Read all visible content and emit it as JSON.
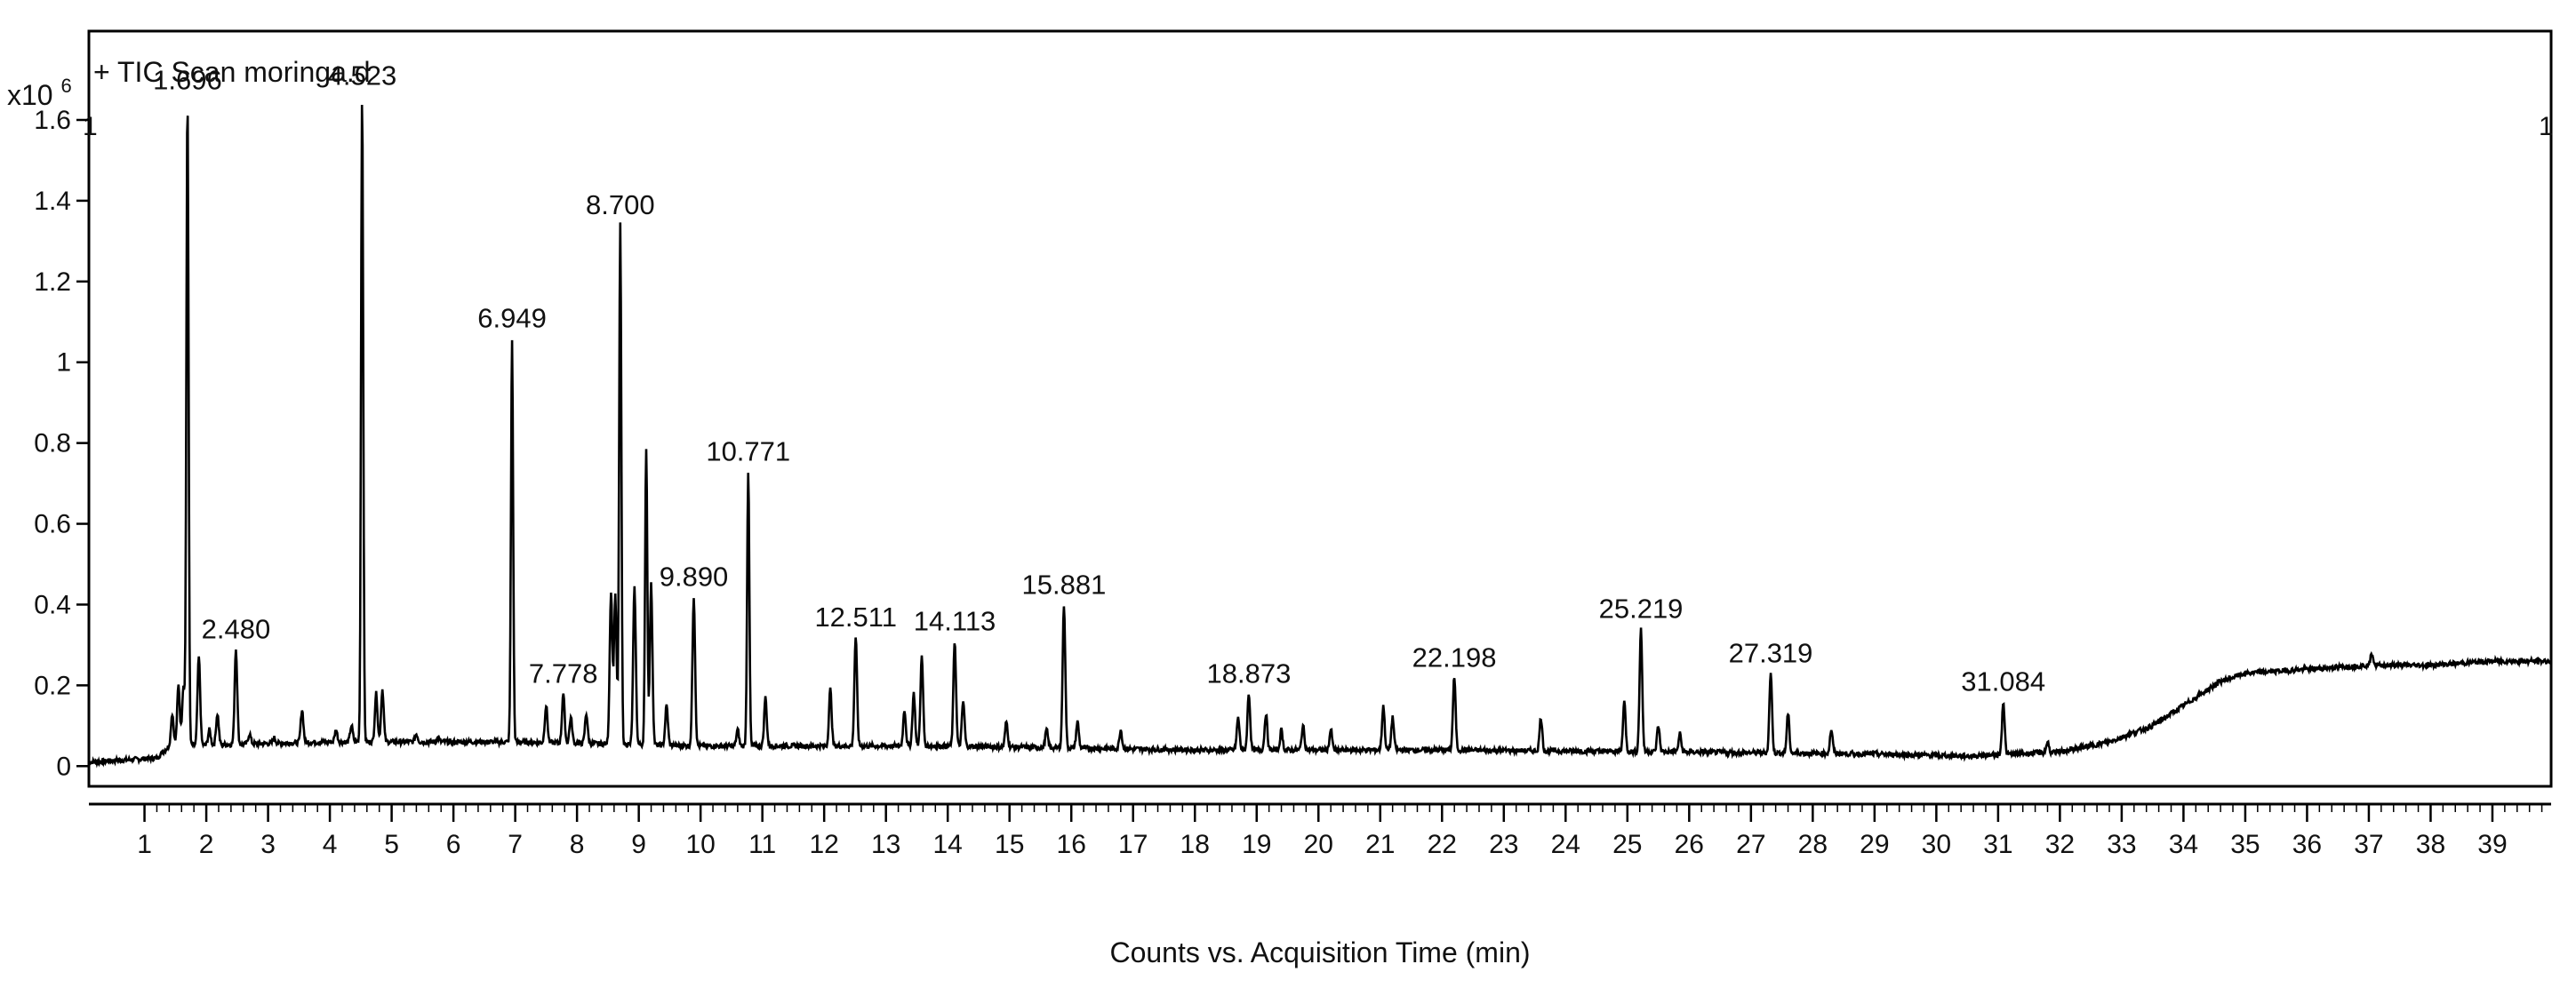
{
  "chart_data": {
    "type": "line",
    "title": "+ TIC Scan moringa.d",
    "xlabel": "Counts vs. Acquisition Time (min)",
    "ylabel": "",
    "y_multiplier": "x10",
    "y_exponent": "6",
    "corner_marker_left": "1",
    "corner_marker_right": "1",
    "xlim": [
      0.1,
      39.95
    ],
    "ylim": [
      -0.05,
      1.82
    ],
    "x_ticks": [
      1,
      2,
      3,
      4,
      5,
      6,
      7,
      8,
      9,
      10,
      11,
      12,
      13,
      14,
      15,
      16,
      17,
      18,
      19,
      20,
      21,
      22,
      23,
      24,
      25,
      26,
      27,
      28,
      29,
      30,
      31,
      32,
      33,
      34,
      35,
      36,
      37,
      38,
      39
    ],
    "x_tick_labels": [
      "1",
      "2",
      "3",
      "4",
      "5",
      "6",
      "7",
      "8",
      "9",
      "10",
      "11",
      "12",
      "13",
      "14",
      "15",
      "16",
      "17",
      "18",
      "19",
      "20",
      "21",
      "22",
      "23",
      "24",
      "25",
      "26",
      "27",
      "28",
      "29",
      "30",
      "31",
      "32",
      "33",
      "34",
      "35",
      "36",
      "37",
      "38",
      "39"
    ],
    "y_ticks": [
      0,
      0.2,
      0.4,
      0.6,
      0.8,
      1,
      1.2,
      1.4,
      1.6
    ],
    "y_tick_labels": [
      "0",
      "0.2",
      "0.4",
      "0.6",
      "0.8",
      "1",
      "1.2",
      "1.4",
      "1.6"
    ],
    "grid": false,
    "line_color": "#000000",
    "peaks": [
      {
        "x": 1.696,
        "y": 1.65,
        "label": "1.696"
      },
      {
        "x": 2.48,
        "y": 0.29,
        "label": "2.480"
      },
      {
        "x": 4.523,
        "y": 1.66,
        "label": "4.523"
      },
      {
        "x": 6.949,
        "y": 1.06,
        "label": "6.949"
      },
      {
        "x": 7.778,
        "y": 0.18,
        "label": "7.778"
      },
      {
        "x": 8.7,
        "y": 1.34,
        "label": "8.700"
      },
      {
        "x": 9.89,
        "y": 0.42,
        "label": "9.890"
      },
      {
        "x": 10.771,
        "y": 0.73,
        "label": "10.771"
      },
      {
        "x": 12.511,
        "y": 0.32,
        "label": "12.511"
      },
      {
        "x": 14.113,
        "y": 0.31,
        "label": "14.113"
      },
      {
        "x": 15.881,
        "y": 0.4,
        "label": "15.881"
      },
      {
        "x": 18.873,
        "y": 0.18,
        "label": "18.873"
      },
      {
        "x": 22.198,
        "y": 0.22,
        "label": "22.198"
      },
      {
        "x": 25.219,
        "y": 0.34,
        "label": "25.219"
      },
      {
        "x": 27.319,
        "y": 0.23,
        "label": "27.319"
      },
      {
        "x": 31.084,
        "y": 0.16,
        "label": "31.084"
      }
    ],
    "minor_peaks": [
      {
        "x": 1.45,
        "y": 0.13
      },
      {
        "x": 1.55,
        "y": 0.2
      },
      {
        "x": 1.63,
        "y": 0.2
      },
      {
        "x": 1.88,
        "y": 0.27
      },
      {
        "x": 2.05,
        "y": 0.09
      },
      {
        "x": 2.18,
        "y": 0.13
      },
      {
        "x": 2.7,
        "y": 0.08
      },
      {
        "x": 3.1,
        "y": 0.07
      },
      {
        "x": 3.55,
        "y": 0.14
      },
      {
        "x": 4.1,
        "y": 0.09
      },
      {
        "x": 4.35,
        "y": 0.1
      },
      {
        "x": 4.75,
        "y": 0.18
      },
      {
        "x": 4.85,
        "y": 0.19
      },
      {
        "x": 5.4,
        "y": 0.08
      },
      {
        "x": 5.75,
        "y": 0.07
      },
      {
        "x": 6.5,
        "y": 0.06
      },
      {
        "x": 7.5,
        "y": 0.15
      },
      {
        "x": 7.9,
        "y": 0.12
      },
      {
        "x": 8.15,
        "y": 0.13
      },
      {
        "x": 8.55,
        "y": 0.43
      },
      {
        "x": 8.62,
        "y": 0.42
      },
      {
        "x": 8.93,
        "y": 0.44
      },
      {
        "x": 9.12,
        "y": 0.79
      },
      {
        "x": 9.2,
        "y": 0.45
      },
      {
        "x": 9.45,
        "y": 0.15
      },
      {
        "x": 10.6,
        "y": 0.09
      },
      {
        "x": 11.05,
        "y": 0.17
      },
      {
        "x": 12.1,
        "y": 0.19
      },
      {
        "x": 13.3,
        "y": 0.14
      },
      {
        "x": 13.45,
        "y": 0.18
      },
      {
        "x": 13.58,
        "y": 0.27
      },
      {
        "x": 14.25,
        "y": 0.16
      },
      {
        "x": 14.95,
        "y": 0.11
      },
      {
        "x": 15.6,
        "y": 0.09
      },
      {
        "x": 16.1,
        "y": 0.11
      },
      {
        "x": 16.8,
        "y": 0.09
      },
      {
        "x": 18.7,
        "y": 0.12
      },
      {
        "x": 19.15,
        "y": 0.13
      },
      {
        "x": 19.4,
        "y": 0.09
      },
      {
        "x": 19.75,
        "y": 0.1
      },
      {
        "x": 20.2,
        "y": 0.09
      },
      {
        "x": 21.05,
        "y": 0.15
      },
      {
        "x": 21.2,
        "y": 0.12
      },
      {
        "x": 23.6,
        "y": 0.12
      },
      {
        "x": 24.95,
        "y": 0.16
      },
      {
        "x": 25.5,
        "y": 0.1
      },
      {
        "x": 25.85,
        "y": 0.08
      },
      {
        "x": 27.6,
        "y": 0.13
      },
      {
        "x": 28.3,
        "y": 0.09
      },
      {
        "x": 31.8,
        "y": 0.06
      },
      {
        "x": 37.05,
        "y": 0.28
      }
    ],
    "baseline": [
      {
        "x": 0.1,
        "y": 0.01
      },
      {
        "x": 1.2,
        "y": 0.02
      },
      {
        "x": 1.4,
        "y": 0.05
      },
      {
        "x": 4.0,
        "y": 0.06
      },
      {
        "x": 7.0,
        "y": 0.06
      },
      {
        "x": 10.0,
        "y": 0.05
      },
      {
        "x": 14.0,
        "y": 0.05
      },
      {
        "x": 18.0,
        "y": 0.04
      },
      {
        "x": 22.0,
        "y": 0.04
      },
      {
        "x": 26.0,
        "y": 0.035
      },
      {
        "x": 29.0,
        "y": 0.03
      },
      {
        "x": 30.5,
        "y": 0.025
      },
      {
        "x": 32.0,
        "y": 0.035
      },
      {
        "x": 32.8,
        "y": 0.06
      },
      {
        "x": 33.5,
        "y": 0.1
      },
      {
        "x": 34.0,
        "y": 0.15
      },
      {
        "x": 34.6,
        "y": 0.21
      },
      {
        "x": 35.0,
        "y": 0.23
      },
      {
        "x": 36.0,
        "y": 0.24
      },
      {
        "x": 37.0,
        "y": 0.25
      },
      {
        "x": 38.0,
        "y": 0.25
      },
      {
        "x": 39.0,
        "y": 0.26
      },
      {
        "x": 39.95,
        "y": 0.26
      }
    ]
  }
}
